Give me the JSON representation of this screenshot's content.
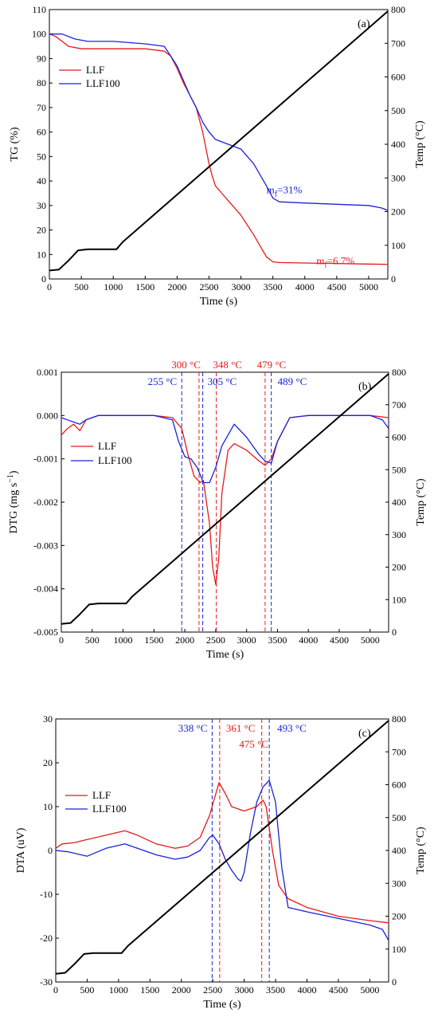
{
  "chart_data": [
    {
      "type": "line",
      "panel_label": "(a)",
      "xlabel": "Time (s)",
      "ylabel": "TG (%)",
      "y2label": "Temp (°C)",
      "xlim": [
        0,
        5300
      ],
      "ylim": [
        0,
        110
      ],
      "y2lim": [
        0,
        800
      ],
      "x_ticks": [
        0,
        500,
        1000,
        1500,
        2000,
        2500,
        3000,
        3500,
        4000,
        4500,
        5000
      ],
      "y_ticks": [
        0,
        10,
        20,
        30,
        40,
        50,
        60,
        70,
        80,
        90,
        100,
        110
      ],
      "y2_ticks": [
        0,
        100,
        200,
        300,
        400,
        500,
        600,
        700,
        800
      ],
      "legend": "upper-left",
      "series": [
        {
          "name": "LLF",
          "color": "#e8191b",
          "x": [
            0,
            100,
            300,
            500,
            1000,
            1500,
            1800,
            1900,
            2000,
            2100,
            2200,
            2300,
            2400,
            2500,
            2550,
            2600,
            2700,
            2800,
            3000,
            3200,
            3400,
            3500,
            3600,
            4000,
            4500,
            5000,
            5300
          ],
          "values": [
            100,
            99,
            95,
            94,
            94,
            94,
            93,
            91,
            86,
            80,
            75,
            70,
            60,
            47,
            42,
            38,
            35,
            32,
            26,
            18,
            9,
            7,
            6.7,
            6.5,
            6.3,
            6.1,
            6
          ]
        },
        {
          "name": "LLF100",
          "color": "#1a23d8",
          "x": [
            0,
            200,
            400,
            600,
            1000,
            1500,
            1800,
            1900,
            2000,
            2100,
            2200,
            2300,
            2400,
            2500,
            2600,
            2800,
            3000,
            3200,
            3400,
            3500,
            3600,
            4000,
            4500,
            5000,
            5200,
            5300
          ],
          "values": [
            100,
            100,
            98,
            97,
            97,
            96,
            95,
            91,
            87,
            81,
            75,
            70,
            64,
            60,
            57,
            55,
            53,
            47,
            38,
            33,
            31.5,
            31,
            30.5,
            30,
            29,
            28
          ]
        },
        {
          "name": "Temp",
          "color": "#000000",
          "axis": "right",
          "x": [
            0,
            150,
            300,
            450,
            600,
            1050,
            1150,
            5300
          ],
          "values": [
            25,
            28,
            55,
            85,
            88,
            88,
            110,
            795
          ]
        }
      ],
      "annotations": [
        {
          "text": "m",
          "sub": "f",
          "rest": "=31%",
          "color": "#1a23d8",
          "x": 3400,
          "y": 33
        },
        {
          "text": "m",
          "sub": "f",
          "rest": "=6.7%",
          "color": "#e8191b",
          "x": 4180,
          "y": 4
        }
      ]
    },
    {
      "type": "line",
      "panel_label": "(b)",
      "xlabel": "Time (s)",
      "ylabel": "DTG (mg s",
      "ylabel_sup": "−1",
      "ylabel_close": ")",
      "y2label": "Temp (°C)",
      "xlim": [
        0,
        5300
      ],
      "ylim": [
        -0.005,
        0.001
      ],
      "y2lim": [
        0,
        800
      ],
      "x_ticks": [
        0,
        500,
        1000,
        1500,
        2000,
        2500,
        3000,
        3500,
        4000,
        4500,
        5000
      ],
      "y_ticks": [
        -0.005,
        -0.004,
        -0.003,
        -0.002,
        -0.001,
        0.0,
        0.001
      ],
      "y_tick_labels": [
        "-0.005",
        "-0.004",
        "-0.003",
        "-0.002",
        "-0.001",
        "0.000",
        "0.001"
      ],
      "y2_ticks": [
        0,
        100,
        200,
        300,
        400,
        500,
        600,
        700,
        800
      ],
      "legend": "left",
      "series": [
        {
          "name": "LLF",
          "color": "#e8191b",
          "x": [
            0,
            100,
            200,
            300,
            400,
            600,
            1000,
            1500,
            1800,
            1950,
            2050,
            2150,
            2250,
            2300,
            2400,
            2450,
            2500,
            2550,
            2600,
            2700,
            2800,
            3000,
            3200,
            3300,
            3400,
            3500,
            3700,
            4000,
            4500,
            5000,
            5300
          ],
          "values": [
            -0.00045,
            -0.0003,
            -0.0002,
            -0.00035,
            -0.0001,
            0,
            0,
            0,
            -5e-05,
            -0.0003,
            -0.0009,
            -0.0014,
            -0.00155,
            -0.0015,
            -0.0025,
            -0.0035,
            -0.0039,
            -0.0033,
            -0.0018,
            -0.0008,
            -0.00065,
            -0.0008,
            -0.00105,
            -0.00115,
            -0.001,
            -0.0006,
            -5e-05,
            0,
            0,
            0,
            -5e-05
          ]
        },
        {
          "name": "LLF100",
          "color": "#1a23d8",
          "x": [
            0,
            100,
            200,
            300,
            400,
            600,
            1000,
            1500,
            1800,
            1900,
            2000,
            2100,
            2200,
            2300,
            2400,
            2500,
            2600,
            2800,
            3000,
            3200,
            3300,
            3400,
            3500,
            3700,
            4000,
            4500,
            5000,
            5200,
            5300
          ],
          "values": [
            -5e-05,
            -0.0001,
            -0.00015,
            -0.0002,
            -0.0001,
            0,
            0,
            0,
            -0.0001,
            -0.0006,
            -0.00095,
            -0.001,
            -0.0012,
            -0.00155,
            -0.00155,
            -0.0012,
            -0.0007,
            -0.0002,
            -0.0005,
            -0.0009,
            -0.00105,
            -0.0011,
            -0.0006,
            -5e-05,
            0,
            0,
            0,
            -0.0001,
            -0.0003
          ]
        },
        {
          "name": "Temp",
          "color": "#000000",
          "axis": "right",
          "x": [
            0,
            150,
            300,
            450,
            600,
            1050,
            1150,
            5300
          ],
          "values": [
            25,
            28,
            55,
            85,
            88,
            88,
            110,
            795
          ]
        }
      ],
      "vlines": [
        {
          "x": 1950,
          "color": "#1a23d8",
          "label": "255 °C"
        },
        {
          "x": 2230,
          "color": "#e8191b",
          "label": "300 °C"
        },
        {
          "x": 2290,
          "color": "#1a23d8",
          "label": "305 °C"
        },
        {
          "x": 2510,
          "color": "#e8191b",
          "label": "348 °C"
        },
        {
          "x": 3300,
          "color": "#e8191b",
          "label": "479 °C"
        },
        {
          "x": 3400,
          "color": "#1a23d8",
          "label": "489 °C"
        }
      ]
    },
    {
      "type": "line",
      "panel_label": "(c)",
      "xlabel": "Time (s)",
      "ylabel": "DTA (uV)",
      "y2label": "Temp (°C)",
      "xlim": [
        0,
        5300
      ],
      "ylim": [
        -30,
        30
      ],
      "y2lim": [
        0,
        800
      ],
      "x_ticks": [
        0,
        500,
        1000,
        1500,
        2000,
        2500,
        3000,
        3500,
        4000,
        4500,
        5000
      ],
      "y_ticks": [
        -30,
        -20,
        -10,
        0,
        10,
        20,
        30
      ],
      "y2_ticks": [
        0,
        100,
        200,
        300,
        400,
        500,
        600,
        700,
        800
      ],
      "legend": "left",
      "series": [
        {
          "name": "LLF",
          "color": "#e8191b",
          "x": [
            0,
            100,
            300,
            500,
            800,
            1100,
            1300,
            1600,
            1900,
            2100,
            2300,
            2450,
            2550,
            2600,
            2700,
            2800,
            2900,
            3000,
            3100,
            3200,
            3300,
            3350,
            3450,
            3550,
            3700,
            4000,
            4500,
            5000,
            5300
          ],
          "values": [
            0.5,
            1.5,
            1.8,
            2.5,
            3.5,
            4.5,
            3.5,
            1.5,
            0.5,
            1,
            3,
            8,
            13,
            15.5,
            13,
            10,
            9.5,
            9,
            9.5,
            10,
            11.5,
            10,
            0,
            -8,
            -11,
            -13,
            -15,
            -16,
            -16.5
          ]
        },
        {
          "name": "LLF100",
          "color": "#1a23d8",
          "x": [
            0,
            200,
            500,
            800,
            1100,
            1300,
            1600,
            1900,
            2100,
            2300,
            2450,
            2500,
            2600,
            2700,
            2800,
            2900,
            2950,
            3000,
            3100,
            3200,
            3300,
            3400,
            3500,
            3600,
            3700,
            4000,
            4500,
            5000,
            5200,
            5300
          ],
          "values": [
            0,
            -0.3,
            -1.3,
            0.5,
            1.5,
            0.5,
            -1,
            -2,
            -1.5,
            0,
            3,
            3.5,
            1.5,
            -2,
            -4.5,
            -6.5,
            -7,
            -5,
            4,
            11,
            14.5,
            16,
            11,
            -4,
            -13,
            -14,
            -15.5,
            -17,
            -18,
            -20.5
          ]
        },
        {
          "name": "Temp",
          "color": "#000000",
          "axis": "right",
          "x": [
            0,
            150,
            300,
            450,
            600,
            1050,
            1150,
            5300
          ],
          "values": [
            25,
            28,
            55,
            85,
            88,
            88,
            110,
            795
          ]
        }
      ],
      "vlines": [
        {
          "x": 2490,
          "color": "#1a23d8",
          "label": "338 °C"
        },
        {
          "x": 2610,
          "color": "#e8191b",
          "label": "361 °C"
        },
        {
          "x": 3280,
          "color": "#e8191b",
          "label": "475 °C"
        },
        {
          "x": 3400,
          "color": "#1a23d8",
          "label": "493 °C"
        }
      ]
    }
  ]
}
